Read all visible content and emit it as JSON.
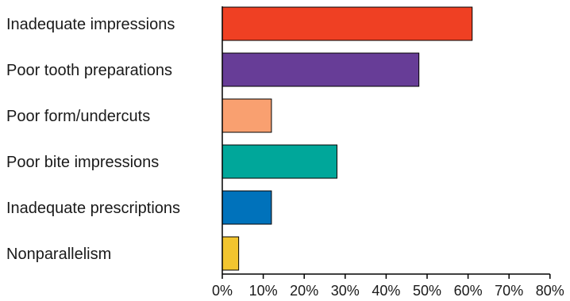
{
  "chart_data": {
    "type": "bar",
    "orientation": "horizontal",
    "title": "",
    "xlabel": "",
    "ylabel": "",
    "categories": [
      "Inadequate impressions",
      "Poor tooth preparations",
      "Poor form/undercuts",
      "Poor bite impressions",
      "Inadequate prescriptions",
      "Nonparallelism"
    ],
    "values": [
      61,
      48,
      12,
      28,
      12,
      4
    ],
    "colors": [
      "#ef4023",
      "#673d97",
      "#f9a070",
      "#00a79a",
      "#0072bb",
      "#f2c52f"
    ],
    "xlim": [
      0,
      80
    ],
    "xticks": [
      0,
      10,
      20,
      30,
      40,
      50,
      60,
      70,
      80
    ],
    "xtick_labels": [
      "0%",
      "10%",
      "20%",
      "30%",
      "40%",
      "50%",
      "60%",
      "70%",
      "80%"
    ],
    "grid": false,
    "legend": "none"
  }
}
